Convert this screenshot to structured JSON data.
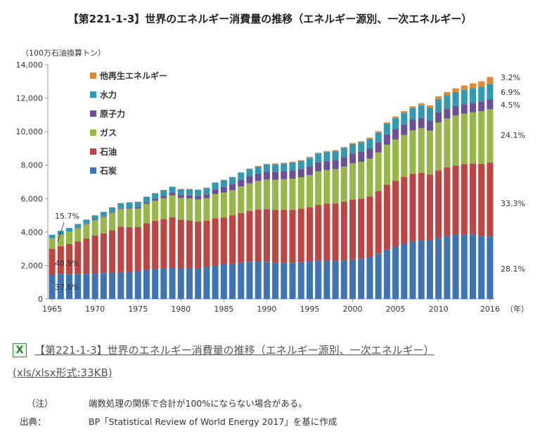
{
  "title": "【第221-1-3】世界のエネルギー消費量の推移（エネルギー源別、一次エネルギー）",
  "colors": {
    "石炭": "#3f74b3",
    "石油": "#bd4544",
    "ガス": "#97b74a",
    "原子力": "#6b4f97",
    "水力": "#3399b3",
    "他再生エネルギー": "#e08a33"
  },
  "chart_data": {
    "type": "bar",
    "stacked": true,
    "ylabel": "（100万石油換算トン）",
    "xunit": "（年）",
    "ylim": [
      0,
      14000
    ],
    "yticks": [
      "0",
      "2,000",
      "4,000",
      "6,000",
      "8,000",
      "10,000",
      "12,000",
      "14,000"
    ],
    "xticks": [
      "1965",
      "1970",
      "1975",
      "1980",
      "1985",
      "1990",
      "1995",
      "2000",
      "2005",
      "2010",
      "2016"
    ],
    "legend": [
      "他再生エネルギー",
      "水力",
      "原子力",
      "ガス",
      "石油",
      "石炭"
    ],
    "legend_position": "top-left",
    "categories": [
      "1965",
      "1966",
      "1967",
      "1968",
      "1969",
      "1970",
      "1971",
      "1972",
      "1973",
      "1974",
      "1975",
      "1976",
      "1977",
      "1978",
      "1979",
      "1980",
      "1981",
      "1982",
      "1983",
      "1984",
      "1985",
      "1986",
      "1987",
      "1988",
      "1989",
      "1990",
      "1991",
      "1992",
      "1993",
      "1994",
      "1995",
      "1996",
      "1997",
      "1998",
      "1999",
      "2000",
      "2001",
      "2002",
      "2003",
      "2004",
      "2005",
      "2006",
      "2007",
      "2008",
      "2009",
      "2010",
      "2011",
      "2012",
      "2013",
      "2014",
      "2015",
      "2016"
    ],
    "series": [
      {
        "name": "石炭",
        "values": [
          1450,
          1480,
          1480,
          1500,
          1510,
          1530,
          1550,
          1580,
          1610,
          1620,
          1660,
          1730,
          1790,
          1810,
          1870,
          1810,
          1830,
          1850,
          1910,
          2000,
          2060,
          2100,
          2170,
          2220,
          2230,
          2220,
          2180,
          2170,
          2180,
          2200,
          2230,
          2290,
          2290,
          2280,
          2300,
          2360,
          2390,
          2480,
          2720,
          2950,
          3130,
          3300,
          3450,
          3520,
          3510,
          3640,
          3790,
          3830,
          3870,
          3880,
          3760,
          3730
        ]
      },
      {
        "name": "石油",
        "values": [
          1550,
          1680,
          1800,
          1940,
          2110,
          2260,
          2370,
          2530,
          2700,
          2680,
          2640,
          2790,
          2880,
          2970,
          3020,
          2930,
          2860,
          2780,
          2770,
          2820,
          2810,
          2900,
          2970,
          3040,
          3110,
          3150,
          3140,
          3160,
          3150,
          3200,
          3260,
          3330,
          3410,
          3430,
          3510,
          3580,
          3610,
          3650,
          3730,
          3880,
          3940,
          3990,
          4030,
          4010,
          3920,
          4040,
          4080,
          4140,
          4180,
          4210,
          4320,
          4420
        ]
      },
      {
        "name": "ガス",
        "values": [
          630,
          680,
          730,
          790,
          860,
          920,
          980,
          1040,
          1080,
          1100,
          1100,
          1170,
          1200,
          1240,
          1310,
          1300,
          1320,
          1320,
          1340,
          1450,
          1490,
          1500,
          1590,
          1650,
          1710,
          1770,
          1810,
          1830,
          1860,
          1870,
          1920,
          2010,
          2010,
          2050,
          2100,
          2170,
          2200,
          2260,
          2310,
          2390,
          2460,
          2510,
          2600,
          2680,
          2630,
          2860,
          2910,
          2990,
          3030,
          3060,
          3140,
          3200
        ]
      },
      {
        "name": "原子力",
        "values": [
          6,
          10,
          14,
          18,
          22,
          20,
          27,
          36,
          46,
          60,
          85,
          100,
          125,
          145,
          150,
          160,
          185,
          205,
          230,
          280,
          330,
          355,
          390,
          425,
          435,
          450,
          470,
          470,
          485,
          500,
          520,
          540,
          540,
          550,
          570,
          585,
          600,
          610,
          600,
          625,
          625,
          635,
          620,
          620,
          615,
          625,
          600,
          560,
          560,
          570,
          580,
          590
        ]
      },
      {
        "name": "水力",
        "values": [
          200,
          215,
          220,
          230,
          240,
          265,
          275,
          285,
          290,
          315,
          320,
          320,
          325,
          340,
          350,
          360,
          365,
          370,
          385,
          400,
          410,
          415,
          420,
          435,
          435,
          450,
          460,
          470,
          490,
          485,
          510,
          520,
          530,
          530,
          540,
          560,
          560,
          575,
          590,
          630,
          660,
          690,
          700,
          740,
          740,
          780,
          790,
          840,
          860,
          880,
          890,
          910
        ]
      },
      {
        "name": "他再生エネルギー",
        "values": [
          5,
          5,
          5,
          6,
          6,
          6,
          7,
          7,
          7,
          8,
          9,
          9,
          10,
          11,
          12,
          13,
          15,
          17,
          18,
          20,
          22,
          24,
          26,
          27,
          30,
          35,
          38,
          40,
          42,
          45,
          48,
          52,
          56,
          58,
          60,
          64,
          66,
          70,
          75,
          80,
          90,
          100,
          115,
          130,
          150,
          170,
          200,
          230,
          260,
          290,
          320,
          420
        ]
      }
    ],
    "annotations_1965": [
      "15.7%",
      "40.9%",
      "37.6%"
    ],
    "annotations_2016": [
      "3.2%",
      "6.9%",
      "4.5%",
      "24.1%",
      "33.3%",
      "28.1%"
    ]
  },
  "download": {
    "icon": "excel-icon",
    "link_text": "【第221-1-3】世界のエネルギー消費量の推移（エネルギー源別、一次エネルギー）",
    "size_text": "(xls/xlsx形式:33KB)"
  },
  "notes": {
    "note_label": "（注）",
    "note_text": "端数処理の関係で合計が100%にならない場合がある。",
    "source_label": "出典：",
    "source_text": "BP「Statistical Review of World Energy 2017」を基に作成"
  }
}
